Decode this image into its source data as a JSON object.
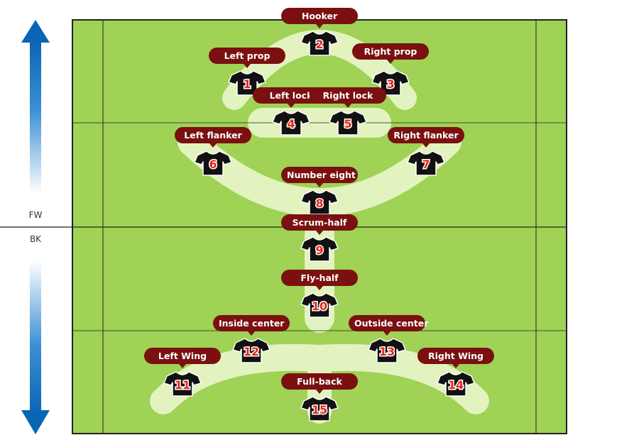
{
  "sections": {
    "forwards_label": "FW",
    "backs_label": "BK"
  },
  "colors": {
    "field": "#9fd255",
    "path": "#e2f3bf",
    "line": "#222222",
    "jersey": "#111111",
    "number": "#e82418",
    "label_bg": "#7a1010",
    "label_text": "#ffffff",
    "arrow": "#0a66b5"
  },
  "positions": [
    {
      "number": "1",
      "label": "Left prop"
    },
    {
      "number": "2",
      "label": "Hooker"
    },
    {
      "number": "3",
      "label": "Right prop"
    },
    {
      "number": "4",
      "label": "Left lock"
    },
    {
      "number": "5",
      "label": "Right lock"
    },
    {
      "number": "6",
      "label": "Left flanker"
    },
    {
      "number": "7",
      "label": "Right flanker"
    },
    {
      "number": "8",
      "label": "Number eight"
    },
    {
      "number": "9",
      "label": "Scrum-half"
    },
    {
      "number": "10",
      "label": "Fly-half"
    },
    {
      "number": "11",
      "label": "Left Wing"
    },
    {
      "number": "12",
      "label": "Inside center"
    },
    {
      "number": "13",
      "label": "Outside center"
    },
    {
      "number": "14",
      "label": "Right Wing"
    },
    {
      "number": "15",
      "label": "Full-back"
    }
  ]
}
